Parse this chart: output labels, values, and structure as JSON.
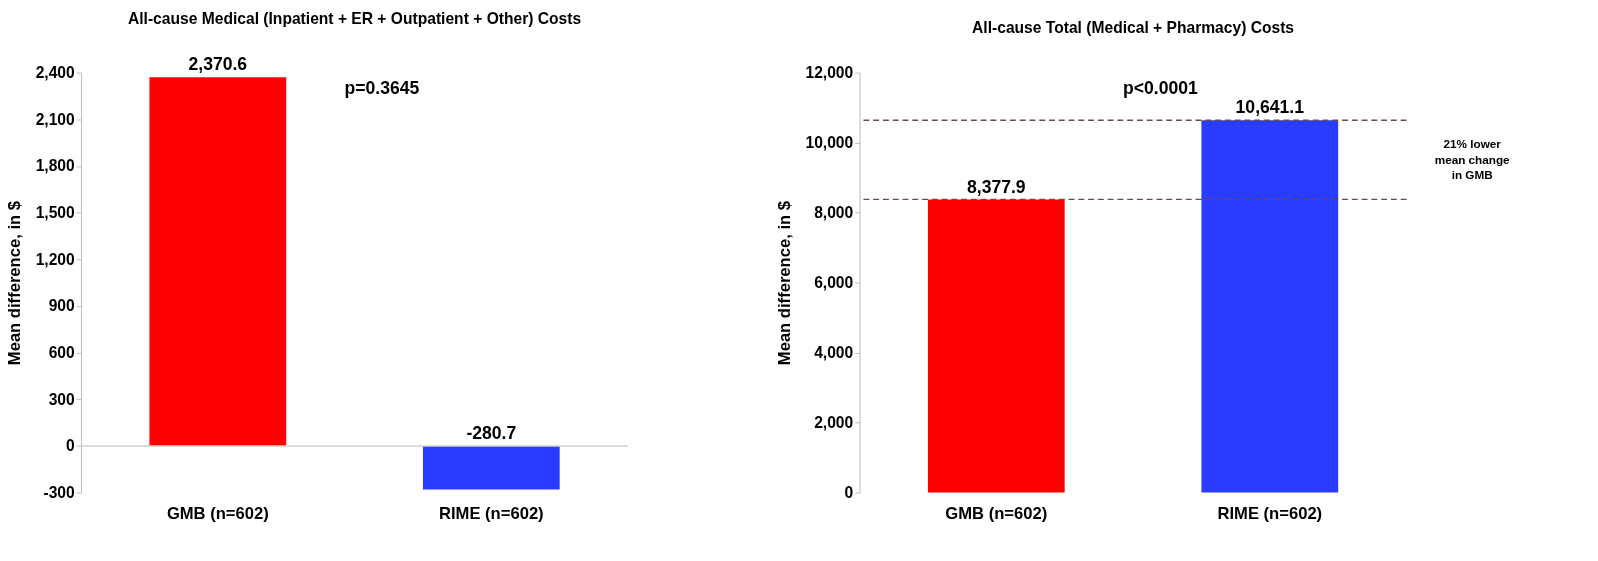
{
  "chart_data": [
    {
      "type": "bar",
      "title": "All-cause Medical (Inpatient + ER + Outpatient + Other) Costs",
      "ylabel": "Mean difference, in $",
      "categories": [
        "GMB (n=602)",
        "RIME (n=602)"
      ],
      "values": [
        2370.6,
        -280.7
      ],
      "colors": [
        "#ff0000",
        "#2a3cff"
      ],
      "value_labels": [
        "2,370.6",
        "-280.7"
      ],
      "ylim": [
        -300,
        2400
      ],
      "yticks": [
        {
          "value": -300,
          "label": "-300"
        },
        {
          "value": 0,
          "label": "0"
        },
        {
          "value": 300,
          "label": "300"
        },
        {
          "value": 600,
          "label": "600"
        },
        {
          "value": 900,
          "label": "900"
        },
        {
          "value": 1200,
          "label": "1,200"
        },
        {
          "value": 1500,
          "label": "1,500"
        },
        {
          "value": 1800,
          "label": "1,800"
        },
        {
          "value": 2100,
          "label": "2,100"
        },
        {
          "value": 2400,
          "label": "2,400"
        }
      ],
      "grid": false,
      "annotations": [
        "p=0.3645"
      ],
      "ref_lines": [
        {
          "axis": "y",
          "value": 0,
          "color": "#d0d0d0",
          "line_style": "solid"
        }
      ]
    },
    {
      "type": "bar",
      "title": "All-cause Total (Medical + Pharmacy) Costs",
      "ylabel": "Mean difference, in $",
      "categories": [
        "GMB (n=602)",
        "RIME (n=602)"
      ],
      "values": [
        8377.9,
        10641.1
      ],
      "colors": [
        "#ff0000",
        "#2a3cff"
      ],
      "value_labels": [
        "8,377.9",
        "10,641.1"
      ],
      "ylim": [
        0,
        12000
      ],
      "yticks": [
        {
          "value": 0,
          "label": "0"
        },
        {
          "value": 2000,
          "label": "2,000"
        },
        {
          "value": 4000,
          "label": "4,000"
        },
        {
          "value": 6000,
          "label": "6,000"
        },
        {
          "value": 8000,
          "label": "8,000"
        },
        {
          "value": 10000,
          "label": "10,000"
        },
        {
          "value": 12000,
          "label": "12,000"
        }
      ],
      "grid": false,
      "annotations": [
        "p<0.0001",
        "21% lower mean change in GMB"
      ],
      "ref_lines": [
        {
          "axis": "y",
          "value": 8377.9,
          "color": "#6b4a4a",
          "line_style": "dashed"
        },
        {
          "axis": "y",
          "value": 10641.1,
          "color": "#6b4a4a",
          "line_style": "dashed"
        }
      ]
    }
  ]
}
